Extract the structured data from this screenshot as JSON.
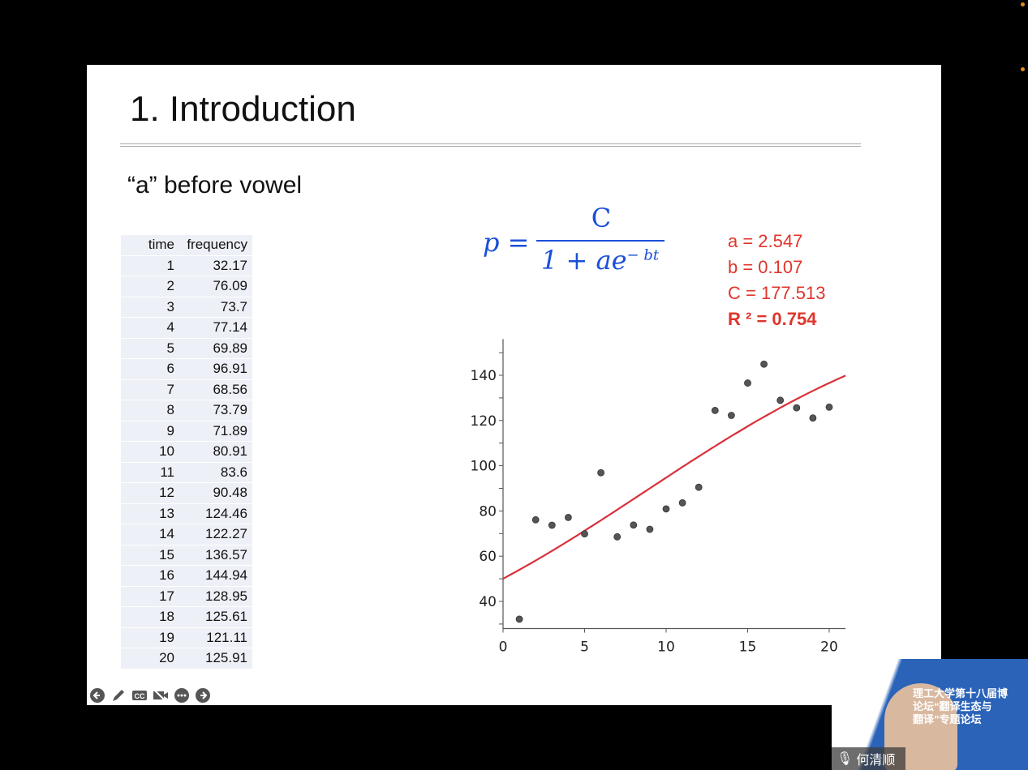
{
  "slide": {
    "title": "1. Introduction",
    "subtitle": "“a” before vowel",
    "table": {
      "headers": [
        "time",
        "frequency"
      ],
      "rows": [
        [
          "1",
          "32.17"
        ],
        [
          "2",
          "76.09"
        ],
        [
          "3",
          "73.7"
        ],
        [
          "4",
          "77.14"
        ],
        [
          "5",
          "69.89"
        ],
        [
          "6",
          "96.91"
        ],
        [
          "7",
          "68.56"
        ],
        [
          "8",
          "73.79"
        ],
        [
          "9",
          "71.89"
        ],
        [
          "10",
          "80.91"
        ],
        [
          "11",
          "83.6"
        ],
        [
          "12",
          "90.48"
        ],
        [
          "13",
          "124.46"
        ],
        [
          "14",
          "122.27"
        ],
        [
          "15",
          "136.57"
        ],
        [
          "16",
          "144.94"
        ],
        [
          "17",
          "128.95"
        ],
        [
          "18",
          "125.61"
        ],
        [
          "19",
          "121.11"
        ],
        [
          "20",
          "125.91"
        ]
      ]
    },
    "formula": {
      "lhs": "p =",
      "numerator": "C",
      "denominator": "1 + ae",
      "exponent": "− bt"
    },
    "params": [
      "a = 2.547",
      "b = 0.107",
      "C = 177.513",
      "R ² = 0.754"
    ]
  },
  "chart_data": {
    "type": "scatter",
    "x": [
      1,
      2,
      3,
      4,
      5,
      6,
      7,
      8,
      9,
      10,
      11,
      12,
      13,
      14,
      15,
      16,
      17,
      18,
      19,
      20
    ],
    "y": [
      32.17,
      76.09,
      73.7,
      77.14,
      69.89,
      96.91,
      68.56,
      73.79,
      71.89,
      80.91,
      83.6,
      90.48,
      124.46,
      122.27,
      136.57,
      144.94,
      128.95,
      125.61,
      121.11,
      125.91
    ],
    "fit": {
      "model": "logistic",
      "a": 2.547,
      "b": 0.107,
      "C": 177.513,
      "color": "#d9303a"
    },
    "xlim": [
      0,
      21
    ],
    "ylim": [
      28,
      156
    ],
    "xticks": [
      0,
      5,
      10,
      15,
      20
    ],
    "yticks": [
      40,
      60,
      80,
      100,
      120,
      140
    ],
    "grid": false,
    "point_color": "#555555"
  },
  "toolbar": [
    "previous-icon",
    "pen-icon",
    "cc-icon",
    "video-off-icon",
    "more-icon",
    "next-icon"
  ],
  "video": {
    "participant": "何清顺",
    "banner": [
      "理工大学第十八届博",
      "论坛“翻译生态与",
      "翻译”专题论坛"
    ]
  }
}
